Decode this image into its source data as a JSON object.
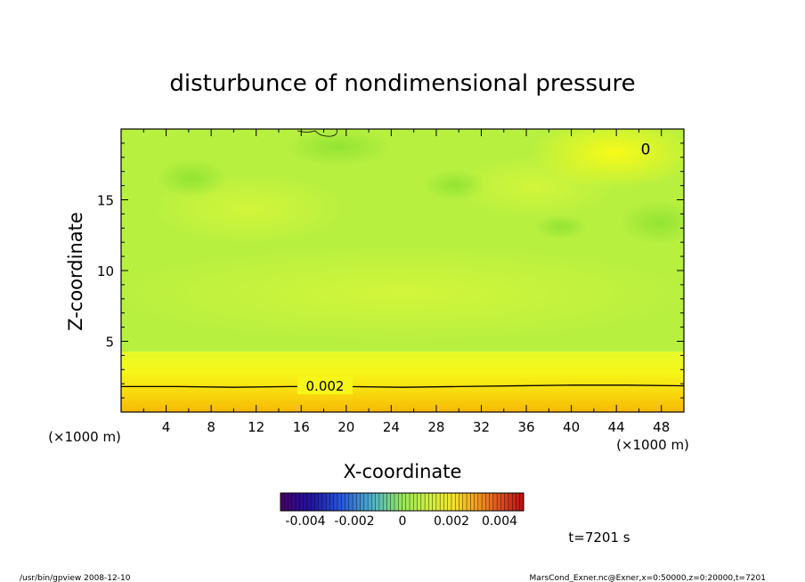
{
  "chart_data": {
    "type": "heatmap",
    "title": "disturbunce of nondimensional pressure",
    "xlabel": "X-coordinate",
    "ylabel": "Z-coordinate",
    "x_unit": "(×1000 m)",
    "y_unit": "(×1000 m)",
    "xlim": [
      0,
      50
    ],
    "ylim": [
      0,
      20
    ],
    "x_ticks": [
      "4",
      "8",
      "12",
      "16",
      "20",
      "24",
      "28",
      "32",
      "36",
      "40",
      "44",
      "48"
    ],
    "y_ticks": [
      "5",
      "10",
      "15"
    ],
    "contours": [
      {
        "label": "0.002",
        "level": 0.002,
        "x": [
          0,
          5,
          10,
          15,
          20,
          25,
          30,
          35,
          40,
          45,
          50
        ],
        "z": [
          1.8,
          1.8,
          1.75,
          1.8,
          1.8,
          1.75,
          1.8,
          1.85,
          1.9,
          1.9,
          1.85
        ]
      }
    ],
    "annotation_marker": {
      "label": "0",
      "x": 46.6,
      "z": 18.6
    },
    "colorbar": {
      "tick_labels": [
        "-0.004",
        "-0.002",
        "0",
        "0.002",
        "0.004"
      ],
      "min": -0.005,
      "max": 0.005
    },
    "time_label": "t=7201 s"
  },
  "footer": {
    "left": "/usr/bin/gpview   2008-12-10",
    "right": "MarsCond_Exner.nc@Exner,x=0:50000,z=0:20000,t=7201"
  },
  "colors": {
    "background": "#ffffff",
    "field_main": "#b8f040",
    "field_dark": "#8ee232",
    "field_light": "#d2f63a",
    "field_yellow": "#f4f81c",
    "field_gold": "#f8c008"
  }
}
